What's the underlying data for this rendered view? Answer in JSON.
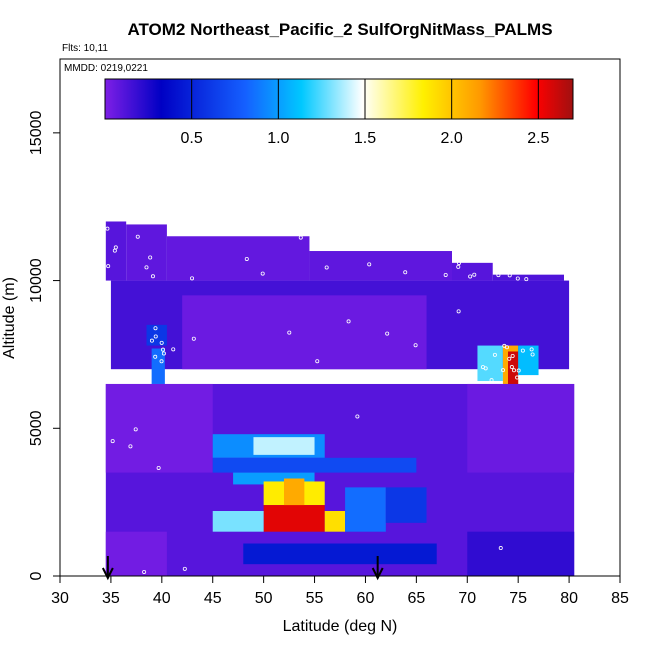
{
  "chart_data": {
    "type": "heatmap",
    "title": "ATOM2 Northeast_Pacific_2 SulfOrgNitMass_PALMS",
    "flights_note": "Flts: 10,11",
    "dates_note": "MMDD: 0219,0221",
    "xlabel": "Latitude (deg N)",
    "ylabel": "Altitude (m)",
    "xlim": [
      30,
      85
    ],
    "ylim": [
      0,
      17500
    ],
    "xticks": [
      "30",
      "35",
      "40",
      "45",
      "50",
      "55",
      "60",
      "65",
      "70",
      "75",
      "80",
      "85"
    ],
    "yticks": [
      "0",
      "5000",
      "10000",
      "15000"
    ],
    "colorbar": {
      "range": [
        0,
        2.7
      ],
      "ticks": [
        "0.5",
        "1.0",
        "1.5",
        "2.0",
        "2.5"
      ],
      "colors": [
        "#7e1fe6",
        "#0000c4",
        "#1560ff",
        "#00c8ff",
        "#ffffff",
        "#fff000",
        "#ff9a00",
        "#ff0000",
        "#a01010"
      ]
    },
    "arrows_at_latitude": [
      34.7,
      61.2
    ],
    "value_field": [
      {
        "lat": [
          34.5,
          36.5
        ],
        "alt": [
          10000,
          12000
        ],
        "value": 0.1
      },
      {
        "lat": [
          36.5,
          40.5
        ],
        "alt": [
          10000,
          11900
        ],
        "value": 0.08
      },
      {
        "lat": [
          40.5,
          54.5
        ],
        "alt": [
          10000,
          11500
        ],
        "value": 0.07
      },
      {
        "lat": [
          54.5,
          68.5
        ],
        "alt": [
          10000,
          11000
        ],
        "value": 0.08
      },
      {
        "lat": [
          68.5,
          72.5
        ],
        "alt": [
          10000,
          10600
        ],
        "value": 0.1
      },
      {
        "lat": [
          72.5,
          79.5
        ],
        "alt": [
          10000,
          10200
        ],
        "value": 0.12
      },
      {
        "lat": [
          35.0,
          80.0
        ],
        "alt": [
          7000,
          10000
        ],
        "value": 0.15
      },
      {
        "lat": [
          42,
          66
        ],
        "alt": [
          7000,
          9500
        ],
        "value": 0.05
      },
      {
        "lat": [
          38.5,
          40.5
        ],
        "alt": [
          7800,
          8500
        ],
        "value": 0.6
      },
      {
        "lat": [
          39.0,
          40.3
        ],
        "alt": [
          6500,
          7700
        ],
        "value": 0.85
      },
      {
        "lat": [
          71.0,
          73.5
        ],
        "alt": [
          6600,
          7800
        ],
        "value": 1.25
      },
      {
        "lat": [
          73.5,
          75.0
        ],
        "alt": [
          6500,
          7800
        ],
        "value": 2.1
      },
      {
        "lat": [
          74.0,
          75.0
        ],
        "alt": [
          6400,
          7600
        ],
        "value": 2.6
      },
      {
        "lat": [
          75.0,
          77.0
        ],
        "alt": [
          6800,
          7800
        ],
        "value": 1.1
      },
      {
        "lat": [
          34.5,
          80.5
        ],
        "alt": [
          0,
          6500
        ],
        "value": 0.1
      },
      {
        "lat": [
          34.5,
          45.0
        ],
        "alt": [
          3500,
          6500
        ],
        "value": 0.03
      },
      {
        "lat": [
          70,
          80.5
        ],
        "alt": [
          3500,
          6500
        ],
        "value": 0.05
      },
      {
        "lat": [
          45.0,
          56.0
        ],
        "alt": [
          4000,
          4800
        ],
        "value": 0.95
      },
      {
        "lat": [
          49.0,
          55.0
        ],
        "alt": [
          4100,
          4700
        ],
        "value": 1.4
      },
      {
        "lat": [
          45.0,
          65.0
        ],
        "alt": [
          3500,
          4000
        ],
        "value": 0.7
      },
      {
        "lat": [
          47.0,
          55.0
        ],
        "alt": [
          3100,
          3500
        ],
        "value": 1.0
      },
      {
        "lat": [
          50.0,
          56.0
        ],
        "alt": [
          2400,
          3200
        ],
        "value": 1.85
      },
      {
        "lat": [
          52.0,
          54.0
        ],
        "alt": [
          2200,
          3300
        ],
        "value": 2.1
      },
      {
        "lat": [
          50.0,
          56.0
        ],
        "alt": [
          1500,
          2400
        ],
        "value": 2.55
      },
      {
        "lat": [
          45.0,
          50.0
        ],
        "alt": [
          1500,
          2200
        ],
        "value": 1.3
      },
      {
        "lat": [
          56.0,
          58.0
        ],
        "alt": [
          1500,
          2200
        ],
        "value": 1.9
      },
      {
        "lat": [
          58.0,
          62.0
        ],
        "alt": [
          1500,
          3000
        ],
        "value": 0.85
      },
      {
        "lat": [
          62.0,
          66.0
        ],
        "alt": [
          1800,
          3000
        ],
        "value": 0.6
      },
      {
        "lat": [
          48.0,
          67.0
        ],
        "alt": [
          400,
          1100
        ],
        "value": 0.45
      },
      {
        "lat": [
          34.5,
          40.5
        ],
        "alt": [
          0,
          1500
        ],
        "value": 0.03
      },
      {
        "lat": [
          70.0,
          80.5
        ],
        "alt": [
          0,
          1500
        ],
        "value": 0.2
      }
    ]
  }
}
